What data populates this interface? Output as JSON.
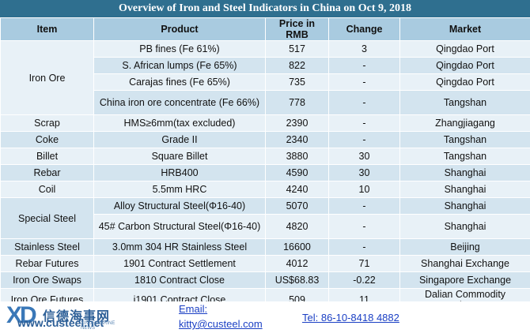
{
  "title": "Overview of Iron and Steel Indicators in China on Oct 9, 2018",
  "headers": {
    "item": "Item",
    "product": "Product",
    "price": "Price in RMB",
    "change": "Change",
    "market": "Market"
  },
  "rows": [
    {
      "item": "Iron Ore",
      "product": "PB fines (Fe 61%)",
      "price": "517",
      "change": "3",
      "market": "Qingdao Port"
    },
    {
      "product": "S. African lumps (Fe 65%)",
      "price": "822",
      "change": "-",
      "market": "Qingdao Port"
    },
    {
      "product": "Carajas fines (Fe 65%)",
      "price": "735",
      "change": "-",
      "market": "Qingdao Port"
    },
    {
      "product": "China iron ore concentrate (Fe 66%)",
      "price": "778",
      "change": "-",
      "market": "Tangshan"
    },
    {
      "item": "Scrap",
      "product": "HMS≥6mm(tax excluded)",
      "price": "2390",
      "change": "-",
      "market": "Zhangjiagang"
    },
    {
      "item": "Coke",
      "product": "Grade II",
      "price": "2340",
      "change": "-",
      "market": "Tangshan"
    },
    {
      "item": "Billet",
      "product": "Square Billet",
      "price": "3880",
      "change": "30",
      "market": "Tangshan"
    },
    {
      "item": "Rebar",
      "product": "HRB400",
      "price": "4590",
      "change": "30",
      "market": "Shanghai"
    },
    {
      "item": "Coil",
      "product": "5.5mm HRC",
      "price": "4240",
      "change": "10",
      "market": "Shanghai"
    },
    {
      "item": "Special Steel",
      "product": "Alloy Structural Steel(Φ16-40)",
      "price": "5070",
      "change": "-",
      "market": "Shanghai"
    },
    {
      "product": "45# Carbon Structural Steel(Φ16-40)",
      "price": "4820",
      "change": "-",
      "market": "Shanghai"
    },
    {
      "item": "Stainless Steel",
      "product": "3.0mm 304 HR Stainless Steel",
      "price": "16600",
      "change": "-",
      "market": "Beijing"
    },
    {
      "item": "Rebar Futures",
      "product": "1901 Contract Settlement",
      "price": "4012",
      "change": "71",
      "market": "Shanghai Exchange"
    },
    {
      "item": "Iron Ore Swaps",
      "product": "1810 Contract Close",
      "price": "US$68.83",
      "change": "-0.22",
      "market": "Singapore Exchange"
    },
    {
      "item": "Iron Ore Futures",
      "product": "i1901 Contract Close",
      "price": "509",
      "change": "11",
      "market": "Dalian Commodity Exchange"
    }
  ],
  "footer": {
    "logo_mark": "XD",
    "logo_cn": "信德海事网",
    "logo_url": "www.custeel.net",
    "logo_sub": "XINDE MARINE NEWS",
    "email_label": "Email:",
    "email": "kitty@custeel.com",
    "tel": "Tel: 86-10-8418 4882"
  }
}
